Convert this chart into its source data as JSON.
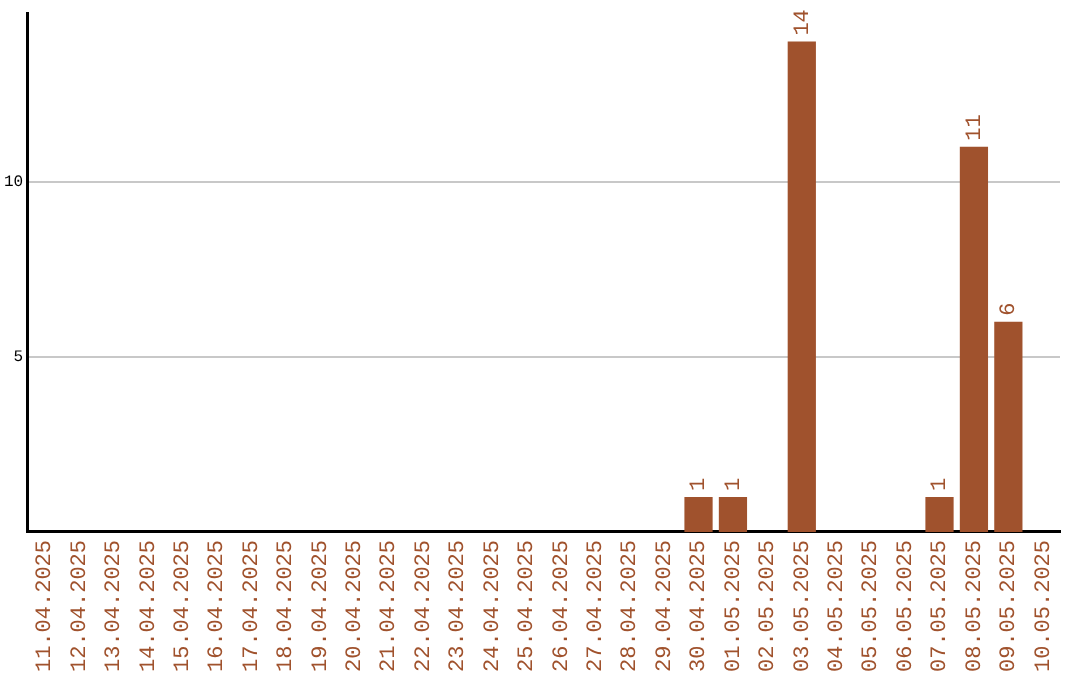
{
  "chart_data": {
    "type": "bar",
    "categories": [
      "11.04.2025",
      "12.04.2025",
      "13.04.2025",
      "14.04.2025",
      "15.04.2025",
      "16.04.2025",
      "17.04.2025",
      "18.04.2025",
      "19.04.2025",
      "20.04.2025",
      "21.04.2025",
      "22.04.2025",
      "23.04.2025",
      "24.04.2025",
      "25.04.2025",
      "26.04.2025",
      "27.04.2025",
      "28.04.2025",
      "29.04.2025",
      "30.04.2025",
      "01.05.2025",
      "02.05.2025",
      "03.05.2025",
      "04.05.2025",
      "05.05.2025",
      "06.05.2025",
      "07.05.2025",
      "08.05.2025",
      "09.05.2025",
      "10.05.2025"
    ],
    "values": [
      0,
      0,
      0,
      0,
      0,
      0,
      0,
      0,
      0,
      0,
      0,
      0,
      0,
      0,
      0,
      0,
      0,
      0,
      0,
      1,
      1,
      0,
      14,
      0,
      0,
      0,
      1,
      11,
      6,
      0
    ],
    "value_labels": [
      null,
      null,
      null,
      null,
      null,
      null,
      null,
      null,
      null,
      null,
      null,
      null,
      null,
      null,
      null,
      null,
      null,
      null,
      null,
      "1",
      "1",
      null,
      "14",
      null,
      null,
      null,
      "1",
      "11",
      "6",
      null
    ],
    "color": "#a0522d",
    "ylim": [
      0,
      14.8
    ],
    "yticks": [
      5,
      10
    ],
    "grid": "y"
  }
}
